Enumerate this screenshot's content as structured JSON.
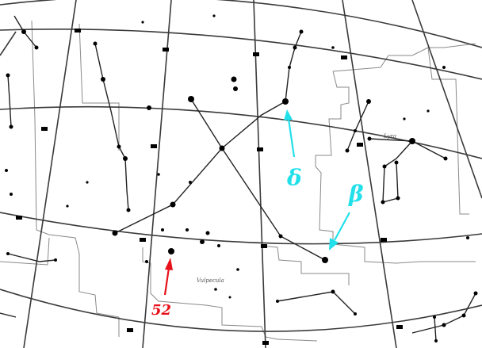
{
  "annotations": {
    "delta": {
      "text": "δ",
      "color": "#22e0ea"
    },
    "beta": {
      "text": "β",
      "color": "#22e0ea"
    },
    "star52": {
      "text": "52",
      "color": "#e8101a"
    }
  },
  "map_labels": {
    "region_left": "Vulpecula",
    "region_right": "Lyra"
  }
}
